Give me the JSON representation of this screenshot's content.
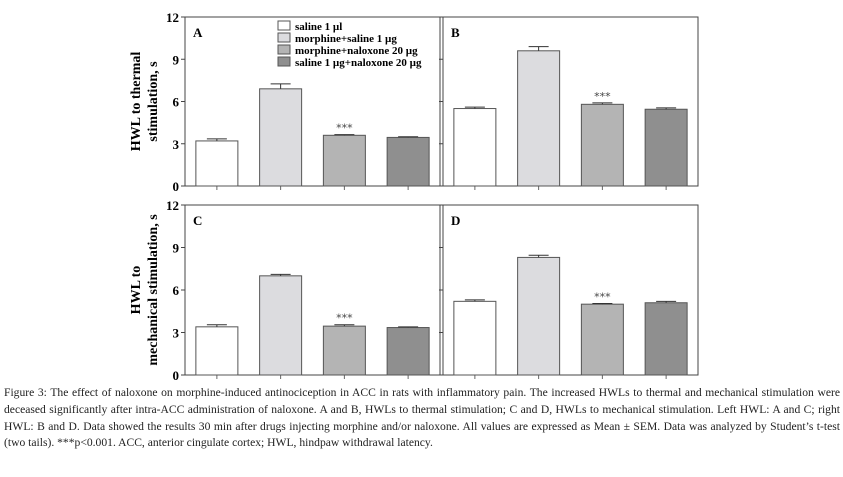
{
  "chart_data": [
    {
      "type": "bar",
      "panel": "A",
      "ylabel": [
        "HWL to thermal",
        "stimulation, s"
      ],
      "ylim": [
        0,
        12
      ],
      "yticks": [
        0,
        3,
        6,
        9,
        12
      ],
      "categories": [
        "saline 1 µl",
        "morphine+saline 1 µg",
        "morphine+naloxone 20 µg",
        "saline 1 µg+naloxone 20 µg"
      ],
      "values": [
        3.2,
        6.9,
        3.6,
        3.45
      ],
      "errors": [
        0.15,
        0.35,
        0.05,
        0.05
      ],
      "annotations": [
        "",
        "",
        "***",
        ""
      ]
    },
    {
      "type": "bar",
      "panel": "B",
      "ylim": [
        0,
        12
      ],
      "categories": [
        "saline 1 µl",
        "morphine+saline 1 µg",
        "morphine+naloxone 20 µg",
        "saline 1 µg+naloxone 20 µg"
      ],
      "values": [
        5.5,
        9.6,
        5.8,
        5.45
      ],
      "errors": [
        0.1,
        0.3,
        0.1,
        0.1
      ],
      "annotations": [
        "",
        "",
        "***",
        ""
      ]
    },
    {
      "type": "bar",
      "panel": "C",
      "ylabel": [
        "HWL to",
        "mechanical stimulation, s"
      ],
      "ylim": [
        0,
        12
      ],
      "yticks": [
        0,
        3,
        6,
        9,
        12
      ],
      "categories": [
        "saline 1 µl",
        "morphine+saline 1 µg",
        "morphine+naloxone 20 µg",
        "saline 1 µg+naloxone 20 µg"
      ],
      "values": [
        3.4,
        7.0,
        3.45,
        3.35
      ],
      "errors": [
        0.15,
        0.1,
        0.1,
        0.05
      ],
      "annotations": [
        "",
        "",
        "***",
        ""
      ]
    },
    {
      "type": "bar",
      "panel": "D",
      "ylim": [
        0,
        12
      ],
      "categories": [
        "saline 1 µl",
        "morphine+saline 1 µg",
        "morphine+naloxone 20 µg",
        "saline 1 µg+naloxone 20 µg"
      ],
      "values": [
        5.2,
        8.3,
        5.0,
        5.1
      ],
      "errors": [
        0.1,
        0.15,
        0.05,
        0.1
      ],
      "annotations": [
        "",
        "",
        "***",
        ""
      ]
    }
  ],
  "legend": {
    "placement": "top-right of panel A",
    "entries": [
      "saline 1 µl",
      "morphine+saline 1 µg",
      "morphine+naloxone 20 µg",
      "saline 1 µg+naloxone 20 µg"
    ]
  },
  "colors": [
    "#ffffff",
    "#dcdcdf",
    "#b4b4b4",
    "#8f8f8f"
  ],
  "caption": {
    "label": "Figure 3:",
    "text": " The effect of naloxone on morphine-induced antinociception in ACC in rats with inflammatory pain. The increased HWLs to thermal and mechanical stimulation were deceased significantly after intra-ACC administration of naloxone. A and B, HWLs to thermal stimulation; C and D, HWLs to mechanical stimulation. Left HWL: A and C; right HWL: B and D. Data showed the results 30 min after drugs injecting morphine and/or naloxone. All values are expressed as Mean ± SEM. Data was analyzed by Student’s t-test (two tails). ***p<0.001. ACC, anterior cingulate cortex; HWL, hindpaw withdrawal latency."
  }
}
